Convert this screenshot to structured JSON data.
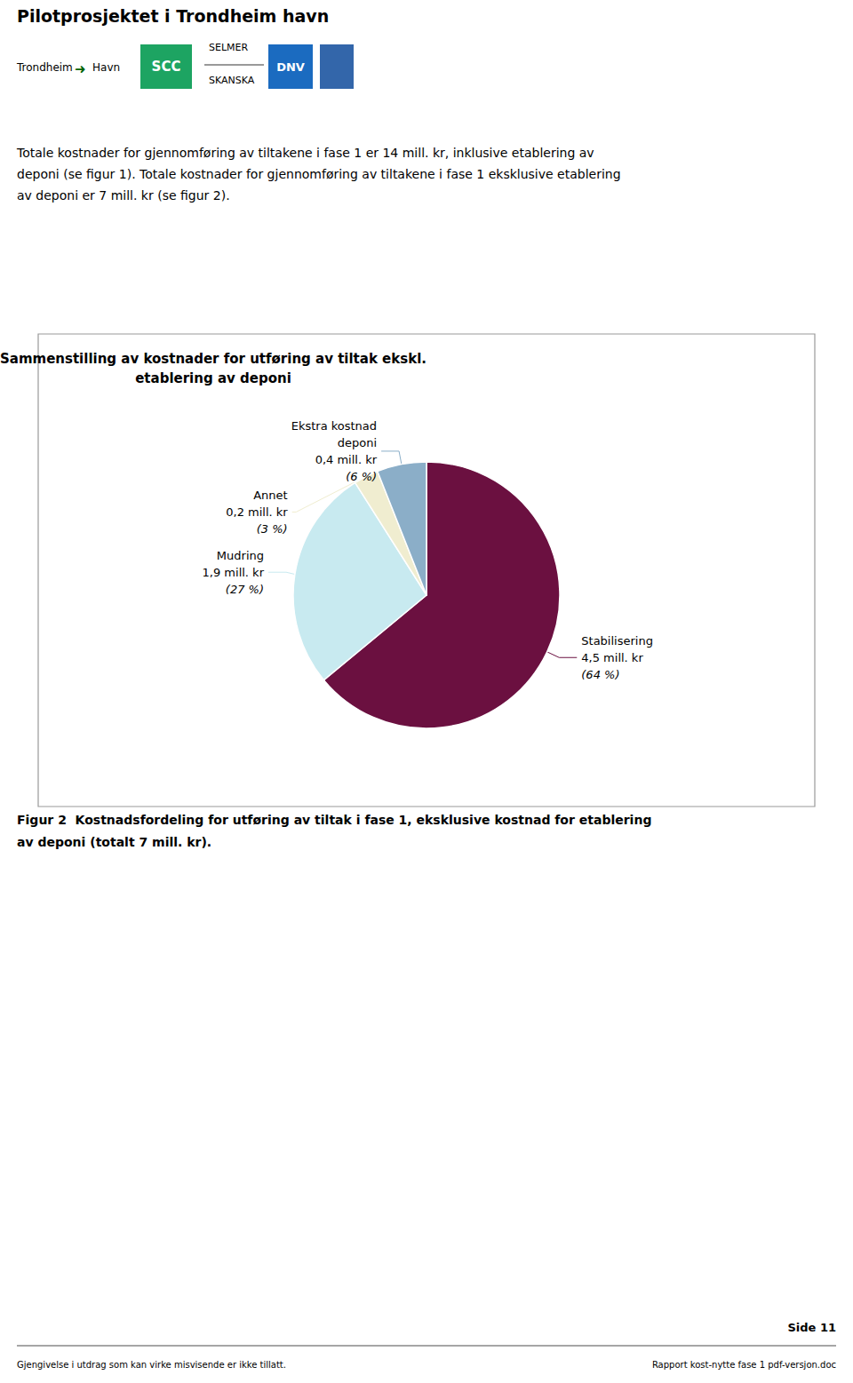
{
  "chart_data": {
    "type": "pie",
    "title": "Sammenstilling av kostnader for utføring av tiltak ekskl.\netablering av deponi",
    "categories": [
      "Stabilisering",
      "Mudring",
      "Annet",
      "Ekstra kostnad\ndeponi"
    ],
    "values": [
      64,
      27,
      3,
      6
    ],
    "value_labels": [
      "(64 %)",
      "(27 %)",
      "(3 %)",
      "(6 %)"
    ],
    "amounts": [
      "4,5 mill. kr",
      "1,9 mill. kr",
      "0,2 mill. kr",
      "0,4 mill. kr"
    ],
    "colors": [
      "#6B1040",
      "#C8EAF0",
      "#F0EDD0",
      "#8BAEC8"
    ],
    "data_labels": true,
    "annotations": [
      "Pilotprosjektet i Trondheim havn",
      "Trondheim",
      "➜",
      "Havn",
      "SCC",
      "SELMER",
      "SKANSKA",
      "DNV",
      "Totale kostnader for gjennomføring av tiltakene i fase 1 er 14 mill. kr, inklusive etablering av\ndeponi (se figur 1). Totale kostnader for gjennomføring av tiltakene i fase 1 eksklusive etablering\nav deponi er 7 mill. kr (se figur 2).",
      "Figur 2  Kostnadsfordeling for utføring av tiltak i fase 1, eksklusive kostnad for etablering",
      "av deponi (totalt 7 mill. kr).",
      "Gjengivelse i utdrag som kan virke misvisende er ikke tillatt.",
      "Rapport kost-nytte fase 1 pdf-versjon.doc",
      "Side 11"
    ]
  }
}
